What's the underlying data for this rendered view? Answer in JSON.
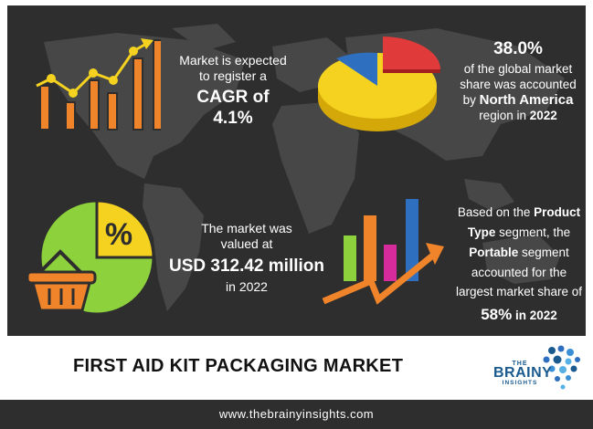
{
  "stats": {
    "cagr": {
      "line1": "Market is expected",
      "line2": "to register a",
      "highlight": "CAGR of 4.1%"
    },
    "region": {
      "percent": "38.0%",
      "line1": "of the global market",
      "line2": "share was accounted",
      "prefix": "by",
      "region_name": "North America",
      "line4_pre": "region in",
      "year": "2022",
      "share": 0.38
    },
    "value": {
      "line1": "The market was",
      "line2": "valued at",
      "highlight": "USD 312.42 million",
      "line4": "in 2022"
    },
    "segment": {
      "line1": "Based on the",
      "product": "Product",
      "type": "Type",
      "line2_post": "segment, the",
      "portable": "Portable",
      "line3_post": "segment",
      "line4": "accounted for the",
      "line5": "largest market share of",
      "percent": "58%",
      "in_year": "in 2022"
    },
    "percent_symbol": "%"
  },
  "title": "FIRST AID KIT PACKAGING MARKET",
  "logo": {
    "the": "THE",
    "brainy": "BRAINY",
    "insights": "INSIGHTS"
  },
  "footer": "www.thebrainyinsights.com",
  "colors": {
    "dark_bg": "#2e2e2e",
    "map": "#474747",
    "orange": "#f0842a",
    "yellow": "#f5d21f",
    "red": "#e03a3a",
    "blue": "#2f6fbf",
    "green": "#8dd13c",
    "magenta": "#d62b9a",
    "brand_blue": "#1a5a8e"
  }
}
